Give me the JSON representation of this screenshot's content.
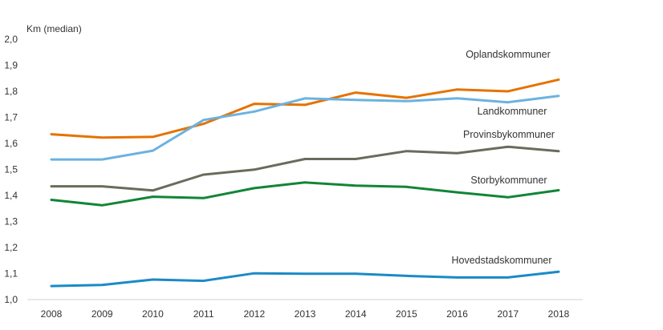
{
  "chart_data": {
    "type": "line",
    "ylabel": "Km (median)",
    "xlabel": "",
    "x": [
      "2008",
      "2009",
      "2010",
      "2011",
      "2012",
      "2013",
      "2014",
      "2015",
      "2016",
      "2017",
      "2018"
    ],
    "ylim": [
      1.0,
      2.0
    ],
    "yticks": [
      "1,0",
      "1,1",
      "1,2",
      "1,3",
      "1,4",
      "1,5",
      "1,6",
      "1,7",
      "1,8",
      "1,9",
      "2,0"
    ],
    "grid": false,
    "legend": "direct labels next to lines",
    "series": [
      {
        "name": "Oplandskommuner",
        "color": "#e57200",
        "values": [
          1.635,
          1.622,
          1.625,
          1.675,
          1.752,
          1.748,
          1.795,
          1.775,
          1.807,
          1.8,
          1.845
        ]
      },
      {
        "name": "Landkommuner",
        "color": "#6cb2e0",
        "values": [
          1.538,
          1.538,
          1.572,
          1.69,
          1.722,
          1.773,
          1.767,
          1.762,
          1.773,
          1.758,
          1.782
        ]
      },
      {
        "name": "Provinsbykommuner",
        "color": "#6b6a5c",
        "values": [
          1.435,
          1.435,
          1.419,
          1.48,
          1.499,
          1.54,
          1.54,
          1.57,
          1.562,
          1.587,
          1.57
        ]
      },
      {
        "name": "Storbykommuner",
        "color": "#128536",
        "values": [
          1.383,
          1.362,
          1.395,
          1.39,
          1.428,
          1.45,
          1.438,
          1.433,
          1.412,
          1.393,
          1.42
        ]
      },
      {
        "name": "Hovedstadskommuner",
        "color": "#1a8ac6",
        "values": [
          1.052,
          1.056,
          1.077,
          1.072,
          1.101,
          1.099,
          1.099,
          1.091,
          1.085,
          1.085,
          1.107
        ]
      }
    ]
  }
}
